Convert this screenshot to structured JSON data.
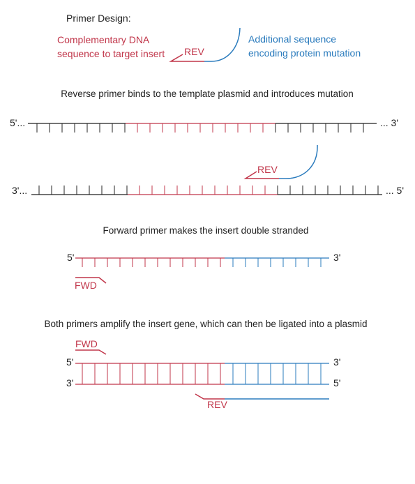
{
  "colors": {
    "template": "#222222",
    "insert": "#c1364a",
    "mutation": "#2a7bbd"
  },
  "legend": {
    "title": "Primer Design:",
    "red_label_line1": "Complementary DNA",
    "red_label_line2": "sequence to target insert",
    "primer_label": "REV",
    "blue_label_line1": "Additional sequence",
    "blue_label_line2": "encoding protein mutation"
  },
  "step1": {
    "caption": "Reverse primer binds to the template plasmid and introduces mutation",
    "top_left": "5'...",
    "top_right": "... 3'",
    "bottom_left": "3'...",
    "bottom_right": "... 5'",
    "primer_label": "REV"
  },
  "step2": {
    "caption": "Forward primer makes the insert double stranded",
    "left": "5'",
    "right": "3'",
    "primer_label": "FWD"
  },
  "step3": {
    "caption": "Both primers amplify the insert gene, which can then be ligated into a plasmid",
    "fwd_label": "FWD",
    "top_left": "5'",
    "top_right": "3'",
    "bottom_left": "3'",
    "bottom_right": "5'",
    "rev_label": "REV"
  }
}
